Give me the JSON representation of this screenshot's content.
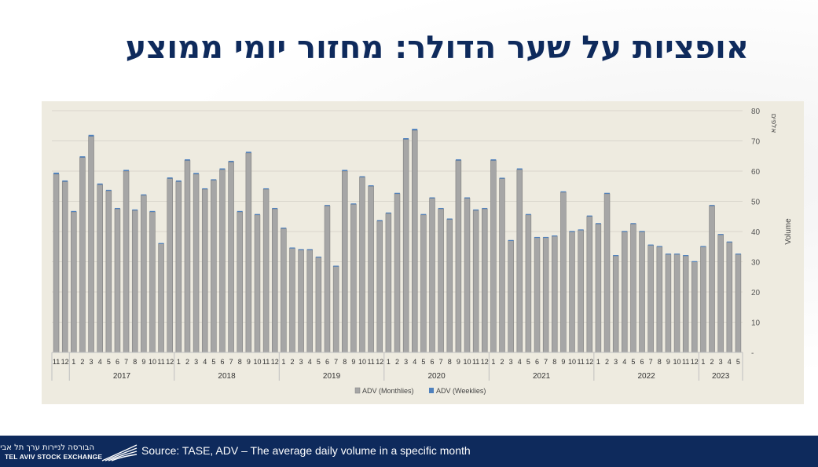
{
  "slide": {
    "title": "אופציות על שער הדולר: מחזור יומי ממוצע"
  },
  "footer": {
    "source": "Source: TASE, ADV – The average daily volume in a specific month",
    "logo_hebrew": "הבורסה לניירות ערך תל אביב",
    "logo_english": "TEL AVIV STOCK EXCHANGE"
  },
  "chart_data": {
    "type": "bar",
    "title": "",
    "xlabel": "",
    "ylabel": "Volume",
    "ylabel_secondary": "אלפים",
    "ylim": [
      0,
      80
    ],
    "yticks": [
      "-",
      "10",
      "20",
      "30",
      "40",
      "50",
      "60",
      "70",
      "80"
    ],
    "grid": true,
    "legend_position": "bottom",
    "colors": {
      "monthly": "#a6a6a6",
      "weekly": "#4f81bd",
      "panel": "#eeebe0",
      "grid": "#d9d6cc"
    },
    "categories": [
      "11",
      "12",
      "1",
      "2",
      "3",
      "4",
      "5",
      "6",
      "7",
      "8",
      "9",
      "10",
      "11",
      "12",
      "1",
      "2",
      "3",
      "4",
      "5",
      "6",
      "7",
      "8",
      "9",
      "10",
      "11",
      "12",
      "1",
      "2",
      "3",
      "4",
      "5",
      "6",
      "7",
      "8",
      "9",
      "10",
      "11",
      "12",
      "1",
      "2",
      "3",
      "4",
      "5",
      "6",
      "7",
      "8",
      "9",
      "10",
      "11",
      "12",
      "1",
      "2",
      "3",
      "4",
      "5",
      "6",
      "7",
      "8",
      "9",
      "10",
      "11",
      "12",
      "1",
      "2",
      "3",
      "4",
      "5",
      "6",
      "7",
      "8",
      "9",
      "10",
      "11",
      "12",
      "1",
      "2",
      "3",
      "4",
      "5"
    ],
    "year_groups": [
      {
        "label": "",
        "start": 0,
        "count": 2
      },
      {
        "label": "2017",
        "start": 2,
        "count": 12
      },
      {
        "label": "2018",
        "start": 14,
        "count": 12
      },
      {
        "label": "2019",
        "start": 26,
        "count": 12
      },
      {
        "label": "2020",
        "start": 38,
        "count": 12
      },
      {
        "label": "2021",
        "start": 50,
        "count": 12
      },
      {
        "label": "2022",
        "start": 62,
        "count": 12
      },
      {
        "label": "2023",
        "start": 74,
        "count": 5
      }
    ],
    "series": [
      {
        "name": "ADV (Monthlies)",
        "values": [
          59,
          56.5,
          46.5,
          64.5,
          71.5,
          55.5,
          53.5,
          47.5,
          60,
          47,
          52,
          46.5,
          36,
          57.5,
          56.5,
          63.5,
          59,
          54,
          57,
          60.5,
          63,
          46.5,
          66,
          45.5,
          54,
          47.5,
          41,
          34.5,
          34,
          34,
          31.5,
          48.5,
          28.5,
          60,
          49,
          58,
          55,
          43.5,
          46,
          52.5,
          70.5,
          73.5,
          45.5,
          51,
          47.5,
          44,
          63.5,
          51,
          47,
          47.5,
          63.5,
          57.5,
          37,
          60.5,
          45.5,
          38,
          38,
          38.5,
          53,
          40,
          40.5,
          45,
          42.5,
          52.5,
          32,
          40,
          42.5,
          40,
          35.5,
          35,
          32.5,
          32.5,
          32,
          30,
          35,
          48.5,
          39,
          36.5,
          32.5
        ]
      },
      {
        "name": "ADV (Weeklies)",
        "values": [
          0.5,
          0.4,
          0.3,
          0.4,
          0.5,
          0.4,
          0.3,
          0.3,
          0.4,
          0.3,
          0.3,
          0.3,
          0.2,
          0.4,
          0.4,
          0.4,
          0.4,
          0.3,
          0.3,
          0.4,
          0.4,
          0.3,
          0.4,
          0.3,
          0.3,
          0.3,
          0.3,
          0.2,
          0.2,
          0.2,
          0.2,
          0.3,
          0.2,
          0.4,
          0.3,
          0.3,
          0.3,
          0.3,
          0.3,
          0.3,
          0.4,
          0.5,
          0.3,
          0.3,
          0.3,
          0.3,
          0.4,
          0.3,
          0.3,
          0.3,
          0.4,
          0.3,
          0.2,
          0.4,
          0.3,
          0.2,
          0.2,
          0.2,
          0.3,
          0.2,
          0.2,
          0.3,
          0.3,
          0.3,
          0.2,
          0.2,
          0.3,
          0.2,
          0.2,
          0.2,
          0.2,
          0.2,
          0.2,
          0.2,
          0.2,
          0.3,
          0.2,
          0.2,
          0.2
        ]
      }
    ]
  }
}
